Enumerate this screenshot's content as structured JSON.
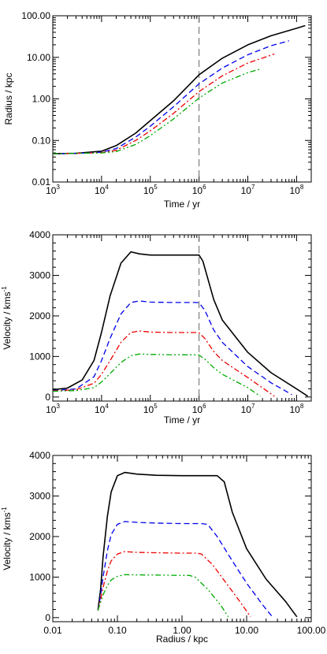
{
  "chart_data": [
    {
      "type": "line",
      "xlabel": "Time / yr",
      "ylabel": "Radius / kpc",
      "xscale": "log",
      "yscale": "log",
      "xlim": [
        1000,
        200000000
      ],
      "ylim": [
        0.01,
        100
      ],
      "xticks": [
        {
          "value": 1000,
          "base": "10",
          "exp": "3"
        },
        {
          "value": 10000,
          "base": "10",
          "exp": "4"
        },
        {
          "value": 100000,
          "base": "10",
          "exp": "5"
        },
        {
          "value": 1000000,
          "base": "10",
          "exp": "6"
        },
        {
          "value": 10000000,
          "base": "10",
          "exp": "7"
        },
        {
          "value": 100000000,
          "base": "10",
          "exp": "8"
        }
      ],
      "yticks": [
        {
          "value": 0.01,
          "label": "0.01"
        },
        {
          "value": 0.1,
          "label": "0.10"
        },
        {
          "value": 1,
          "label": "1.00"
        },
        {
          "value": 10,
          "label": "10.00"
        },
        {
          "value": 100,
          "label": "100.00"
        }
      ],
      "vline": 1000000,
      "series": [
        {
          "color": "#000000",
          "dash": "solid",
          "x": [
            1000,
            3000,
            10000,
            20000,
            50000,
            100000,
            300000,
            1000000,
            3000000,
            10000000,
            30000000,
            100000000,
            150000000
          ],
          "y": [
            0.048,
            0.049,
            0.055,
            0.075,
            0.15,
            0.3,
            0.9,
            3.8,
            9.5,
            20,
            33,
            50,
            58
          ]
        },
        {
          "color": "#0000ee",
          "dash": "dashed",
          "x": [
            1000,
            3000,
            10000,
            20000,
            50000,
            100000,
            300000,
            1000000,
            3000000,
            10000000,
            30000000,
            70000000
          ],
          "y": [
            0.048,
            0.049,
            0.052,
            0.064,
            0.12,
            0.22,
            0.65,
            2.3,
            5.5,
            11.5,
            19,
            25
          ]
        },
        {
          "color": "#ee0000",
          "dash": "dashdot",
          "x": [
            1000,
            3000,
            10000,
            20000,
            50000,
            100000,
            300000,
            1000000,
            3000000,
            10000000,
            35000000
          ],
          "y": [
            0.048,
            0.049,
            0.051,
            0.058,
            0.1,
            0.17,
            0.45,
            1.5,
            3.6,
            7.3,
            12
          ]
        },
        {
          "color": "#00aa00",
          "dash": "dashdotdot",
          "x": [
            1000,
            3000,
            10000,
            20000,
            50000,
            100000,
            300000,
            1000000,
            3000000,
            10000000,
            18000000
          ],
          "y": [
            0.048,
            0.049,
            0.05,
            0.054,
            0.08,
            0.13,
            0.33,
            1.05,
            2.4,
            4.3,
            5.2
          ]
        }
      ]
    },
    {
      "type": "line",
      "xlabel": "Time / yr",
      "ylabel": "Velocity / kms",
      "ylabel_sup": "-1",
      "xscale": "log",
      "yscale": "linear",
      "xlim": [
        1000,
        200000000
      ],
      "ylim": [
        -100,
        4000
      ],
      "xticks": [
        {
          "value": 1000,
          "base": "10",
          "exp": "3"
        },
        {
          "value": 10000,
          "base": "10",
          "exp": "4"
        },
        {
          "value": 100000,
          "base": "10",
          "exp": "5"
        },
        {
          "value": 1000000,
          "base": "10",
          "exp": "6"
        },
        {
          "value": 10000000,
          "base": "10",
          "exp": "7"
        },
        {
          "value": 100000000,
          "base": "10",
          "exp": "8"
        }
      ],
      "yticks": [
        {
          "value": 0,
          "label": "0"
        },
        {
          "value": 1000,
          "label": "1000"
        },
        {
          "value": 2000,
          "label": "2000"
        },
        {
          "value": 3000,
          "label": "3000"
        },
        {
          "value": 4000,
          "label": "4000"
        }
      ],
      "vline": 1000000,
      "series": [
        {
          "color": "#000000",
          "dash": "solid",
          "x": [
            1000,
            2000,
            4000,
            7000,
            10000,
            15000,
            25000,
            40000,
            60000,
            100000,
            300000,
            900000,
            1000000,
            1200000,
            2000000,
            3000000,
            10000000,
            30000000,
            100000000,
            170000000
          ],
          "y": [
            180,
            220,
            420,
            900,
            1600,
            2500,
            3300,
            3580,
            3530,
            3500,
            3500,
            3500,
            3500,
            3350,
            2400,
            1900,
            1100,
            600,
            200,
            20
          ]
        },
        {
          "color": "#0000ee",
          "dash": "dashed",
          "x": [
            1000,
            3000,
            7000,
            10000,
            15000,
            25000,
            40000,
            60000,
            100000,
            300000,
            900000,
            1000000,
            1300000,
            2000000,
            3000000,
            10000000,
            30000000,
            80000000
          ],
          "y": [
            160,
            200,
            500,
            900,
            1450,
            2050,
            2330,
            2370,
            2340,
            2330,
            2330,
            2320,
            2150,
            1650,
            1350,
            750,
            350,
            60
          ]
        },
        {
          "color": "#ee0000",
          "dash": "dashdot",
          "x": [
            1000,
            3000,
            7000,
            10000,
            15000,
            25000,
            40000,
            60000,
            100000,
            300000,
            900000,
            1000000,
            1300000,
            2000000,
            3000000,
            10000000,
            35000000
          ],
          "y": [
            150,
            180,
            340,
            560,
            900,
            1350,
            1590,
            1630,
            1600,
            1590,
            1590,
            1580,
            1450,
            1120,
            900,
            480,
            20
          ]
        },
        {
          "color": "#00aa00",
          "dash": "dashdotdot",
          "x": [
            1000,
            3000,
            7000,
            10000,
            15000,
            25000,
            40000,
            60000,
            100000,
            300000,
            900000,
            1000000,
            1300000,
            2000000,
            3000000,
            10000000,
            18000000
          ],
          "y": [
            140,
            160,
            230,
            370,
            580,
            850,
            1020,
            1060,
            1050,
            1040,
            1040,
            1030,
            940,
            720,
            560,
            230,
            20
          ]
        }
      ]
    },
    {
      "type": "line",
      "xlabel": "Radius / kpc",
      "ylabel": "Velocity / kms",
      "ylabel_sup": "-1",
      "xscale": "log",
      "yscale": "linear",
      "xlim": [
        0.01,
        100
      ],
      "ylim": [
        -100,
        4000
      ],
      "xticks": [
        {
          "value": 0.01,
          "label": "0.01"
        },
        {
          "value": 0.1,
          "label": "0.10"
        },
        {
          "value": 1,
          "label": "1.00"
        },
        {
          "value": 10,
          "label": "10.00"
        },
        {
          "value": 100,
          "label": "100.00"
        }
      ],
      "yticks": [
        {
          "value": 0,
          "label": "0"
        },
        {
          "value": 1000,
          "label": "1000"
        },
        {
          "value": 2000,
          "label": "2000"
        },
        {
          "value": 3000,
          "label": "3000"
        },
        {
          "value": 4000,
          "label": "4000"
        }
      ],
      "series": [
        {
          "color": "#000000",
          "dash": "solid",
          "x": [
            0.05,
            0.055,
            0.06,
            0.07,
            0.08,
            0.1,
            0.13,
            0.2,
            0.4,
            1,
            2.5,
            3.5,
            4.5,
            6,
            10,
            20,
            40,
            55,
            60
          ],
          "y": [
            180,
            700,
            1500,
            2500,
            3100,
            3500,
            3580,
            3540,
            3510,
            3500,
            3500,
            3500,
            3350,
            2600,
            1700,
            950,
            400,
            100,
            20
          ]
        },
        {
          "color": "#0000ee",
          "dash": "dashed",
          "x": [
            0.05,
            0.055,
            0.06,
            0.07,
            0.08,
            0.1,
            0.13,
            0.2,
            0.4,
            1,
            2,
            2.5,
            3.5,
            6,
            10,
            18,
            25
          ],
          "y": [
            180,
            550,
            1000,
            1650,
            2050,
            2300,
            2370,
            2350,
            2330,
            2320,
            2320,
            2300,
            2000,
            1400,
            850,
            300,
            20
          ]
        },
        {
          "color": "#ee0000",
          "dash": "dashdot",
          "x": [
            0.05,
            0.055,
            0.06,
            0.07,
            0.08,
            0.1,
            0.13,
            0.2,
            0.4,
            1,
            1.7,
            2,
            3,
            5,
            8,
            11.5
          ],
          "y": [
            180,
            450,
            750,
            1150,
            1400,
            1570,
            1630,
            1610,
            1600,
            1590,
            1590,
            1570,
            1300,
            820,
            380,
            20
          ]
        },
        {
          "color": "#00aa00",
          "dash": "dashdotdot",
          "x": [
            0.05,
            0.055,
            0.06,
            0.07,
            0.08,
            0.1,
            0.13,
            0.2,
            0.4,
            1,
            1.3,
            1.6,
            2.5,
            4,
            5.2
          ],
          "y": [
            180,
            380,
            560,
            790,
            930,
            1020,
            1060,
            1055,
            1050,
            1040,
            1040,
            1000,
            700,
            300,
            20
          ]
        }
      ]
    }
  ]
}
